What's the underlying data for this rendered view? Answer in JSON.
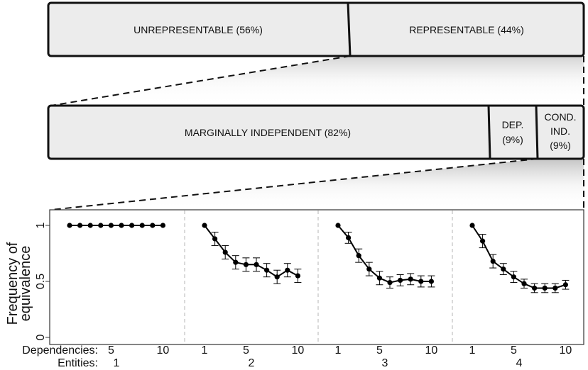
{
  "top_bar": [
    {
      "label": "UNREPRESENTABLE (56%)",
      "value": 56
    },
    {
      "label": "REPRESENTABLE (44%)",
      "value": 44
    }
  ],
  "mid_bar": [
    {
      "lines": [
        "MARGINALLY INDEPENDENT (82%)"
      ],
      "value": 82
    },
    {
      "lines": [
        "DEP.",
        "(9%)"
      ],
      "value": 9
    },
    {
      "lines": [
        "COND.",
        "IND.",
        "(9%)"
      ],
      "value": 9
    }
  ],
  "chart_data": {
    "type": "line",
    "ylabel": [
      "Frequency of",
      "equivalence"
    ],
    "ylim": [
      0,
      1
    ],
    "yticks": [
      0,
      0.5,
      1
    ],
    "yticklabels": [
      "0",
      "0.5",
      "1"
    ],
    "xlabel_row1": "Dependencies:",
    "xlabel_row2": "Entities:",
    "xticks": [
      1,
      5,
      10
    ],
    "xticklabels": [
      "1",
      "5",
      "10"
    ],
    "grid": false,
    "panels": [
      {
        "entities": "1",
        "x": [
          1,
          2,
          3,
          4,
          5,
          6,
          7,
          8,
          9,
          10
        ],
        "y": [
          1,
          1,
          1,
          1,
          1,
          1,
          1,
          1,
          1,
          1
        ],
        "err": [
          0,
          0,
          0,
          0,
          0,
          0,
          0,
          0,
          0,
          0
        ]
      },
      {
        "entities": "2",
        "x": [
          1,
          2,
          3,
          4,
          5,
          6,
          7,
          8,
          9,
          10
        ],
        "y": [
          1.0,
          0.88,
          0.76,
          0.67,
          0.65,
          0.65,
          0.6,
          0.54,
          0.6,
          0.55
        ],
        "err": [
          0,
          0.06,
          0.06,
          0.06,
          0.06,
          0.06,
          0.06,
          0.06,
          0.06,
          0.06
        ]
      },
      {
        "entities": "3",
        "x": [
          1,
          2,
          3,
          4,
          5,
          6,
          7,
          8,
          9,
          10
        ],
        "y": [
          1.0,
          0.89,
          0.73,
          0.61,
          0.53,
          0.49,
          0.51,
          0.52,
          0.5,
          0.5
        ],
        "err": [
          0,
          0.05,
          0.06,
          0.06,
          0.06,
          0.05,
          0.05,
          0.05,
          0.05,
          0.05
        ]
      },
      {
        "entities": "4",
        "x": [
          1,
          2,
          3,
          4,
          5,
          6,
          7,
          8,
          9,
          10
        ],
        "y": [
          1.0,
          0.86,
          0.68,
          0.61,
          0.54,
          0.48,
          0.44,
          0.44,
          0.44,
          0.47
        ],
        "err": [
          0,
          0.06,
          0.06,
          0.05,
          0.05,
          0.04,
          0.04,
          0.04,
          0.04,
          0.04
        ]
      }
    ]
  }
}
